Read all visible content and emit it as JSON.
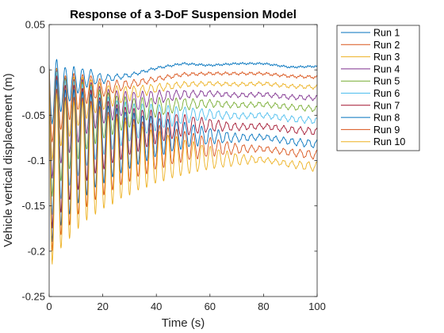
{
  "chart_data": {
    "type": "line",
    "title": "Response of a 3-DoF Suspension Model",
    "xlabel": "Time (s)",
    "ylabel": "Vehicle vertical displacement (m)",
    "xlim": [
      0,
      100
    ],
    "ylim": [
      -0.25,
      0.05
    ],
    "xticks": [
      0,
      20,
      40,
      60,
      80,
      100
    ],
    "yticks": [
      -0.25,
      -0.2,
      -0.15,
      -0.1,
      -0.05,
      0,
      0.05
    ],
    "xtick_labels": [
      "0",
      "20",
      "40",
      "60",
      "80",
      "100"
    ],
    "ytick_labels": [
      "-0.25",
      "-0.2",
      "-0.15",
      "-0.1",
      "-0.05",
      "0",
      "0.05"
    ],
    "grid": false,
    "legend_position": "outside-top-right",
    "series": [
      {
        "name": "Run 1",
        "color": "#0072BD",
        "x": [
          0,
          2,
          5,
          10,
          15,
          20,
          30,
          40,
          50,
          60,
          70,
          80,
          90,
          100
        ],
        "y": [
          0.005,
          -0.06,
          -0.02,
          -0.012,
          -0.008,
          -0.01,
          -0.006,
          0.002,
          0.007,
          0.005,
          0.007,
          0.007,
          0.003,
          0.004
        ]
      },
      {
        "name": "Run 2",
        "color": "#D95319",
        "x": [
          0,
          2,
          5,
          10,
          15,
          20,
          30,
          40,
          50,
          60,
          70,
          80,
          90,
          100
        ],
        "y": [
          0.004,
          -0.08,
          -0.035,
          -0.025,
          -0.02,
          -0.02,
          -0.016,
          -0.01,
          -0.005,
          -0.004,
          -0.004,
          -0.004,
          -0.007,
          -0.008
        ]
      },
      {
        "name": "Run 3",
        "color": "#EDB120",
        "x": [
          0,
          2,
          5,
          10,
          15,
          20,
          30,
          40,
          50,
          60,
          70,
          80,
          90,
          100
        ],
        "y": [
          0.004,
          -0.1,
          -0.045,
          -0.036,
          -0.03,
          -0.03,
          -0.026,
          -0.02,
          -0.016,
          -0.015,
          -0.016,
          -0.015,
          -0.018,
          -0.019
        ]
      },
      {
        "name": "Run 4",
        "color": "#7E2F8E",
        "x": [
          0,
          2,
          5,
          10,
          15,
          20,
          30,
          40,
          50,
          60,
          70,
          80,
          90,
          100
        ],
        "y": [
          0.003,
          -0.12,
          -0.055,
          -0.046,
          -0.04,
          -0.04,
          -0.036,
          -0.03,
          -0.027,
          -0.026,
          -0.028,
          -0.027,
          -0.03,
          -0.031
        ]
      },
      {
        "name": "Run 5",
        "color": "#77AC30",
        "x": [
          0,
          2,
          5,
          10,
          15,
          20,
          30,
          40,
          50,
          60,
          70,
          80,
          90,
          100
        ],
        "y": [
          0.003,
          -0.14,
          -0.065,
          -0.056,
          -0.05,
          -0.05,
          -0.047,
          -0.041,
          -0.038,
          -0.037,
          -0.039,
          -0.038,
          -0.041,
          -0.043
        ]
      },
      {
        "name": "Run 6",
        "color": "#4DBEEE",
        "x": [
          0,
          2,
          5,
          10,
          15,
          20,
          30,
          40,
          50,
          60,
          70,
          80,
          90,
          100
        ],
        "y": [
          0.002,
          -0.16,
          -0.075,
          -0.066,
          -0.06,
          -0.061,
          -0.058,
          -0.052,
          -0.05,
          -0.049,
          -0.051,
          -0.05,
          -0.054,
          -0.056
        ]
      },
      {
        "name": "Run 7",
        "color": "#A2142F",
        "x": [
          0,
          2,
          5,
          10,
          15,
          20,
          30,
          40,
          50,
          60,
          70,
          80,
          90,
          100
        ],
        "y": [
          0.002,
          -0.175,
          -0.085,
          -0.076,
          -0.07,
          -0.071,
          -0.068,
          -0.063,
          -0.061,
          -0.061,
          -0.063,
          -0.062,
          -0.066,
          -0.068
        ]
      },
      {
        "name": "Run 8",
        "color": "#0072BD",
        "x": [
          0,
          2,
          5,
          10,
          15,
          20,
          30,
          40,
          50,
          60,
          70,
          80,
          90,
          100
        ],
        "y": [
          0.001,
          -0.19,
          -0.095,
          -0.086,
          -0.08,
          -0.081,
          -0.078,
          -0.074,
          -0.072,
          -0.073,
          -0.075,
          -0.074,
          -0.079,
          -0.082
        ]
      },
      {
        "name": "Run 9",
        "color": "#D95319",
        "x": [
          0,
          2,
          5,
          10,
          15,
          20,
          30,
          40,
          50,
          60,
          70,
          80,
          90,
          100
        ],
        "y": [
          0.001,
          -0.2,
          -0.105,
          -0.096,
          -0.09,
          -0.091,
          -0.088,
          -0.085,
          -0.084,
          -0.085,
          -0.087,
          -0.087,
          -0.091,
          -0.094
        ]
      },
      {
        "name": "Run 10",
        "color": "#EDB120",
        "x": [
          0,
          2,
          5,
          10,
          15,
          20,
          30,
          40,
          50,
          60,
          70,
          80,
          90,
          100
        ],
        "y": [
          0.0,
          -0.215,
          -0.115,
          -0.106,
          -0.1,
          -0.101,
          -0.098,
          -0.096,
          -0.096,
          -0.097,
          -0.099,
          -0.099,
          -0.104,
          -0.107
        ]
      }
    ]
  }
}
